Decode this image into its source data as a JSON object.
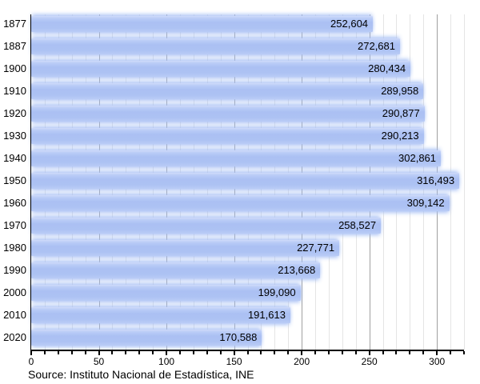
{
  "chart_data": {
    "type": "bar",
    "orientation": "horizontal",
    "title": "",
    "xlabel": "",
    "ylabel": "",
    "categories": [
      "1877",
      "1887",
      "1900",
      "1910",
      "1920",
      "1930",
      "1940",
      "1950",
      "1960",
      "1970",
      "1980",
      "1990",
      "2000",
      "2010",
      "2020"
    ],
    "values": [
      252604,
      272681,
      280434,
      289958,
      290877,
      290213,
      302861,
      316493,
      309142,
      258527,
      227771,
      213668,
      199090,
      191613,
      170588
    ],
    "value_labels": [
      "252,604",
      "272,681",
      "280,434",
      "289,958",
      "290,877",
      "290,213",
      "302,861",
      "316,493",
      "309,142",
      "258,527",
      "227,771",
      "213,668",
      "199,090",
      "191,613",
      "170,588"
    ],
    "x_axis_unit_divisor": 1000,
    "xlim": [
      0,
      320
    ],
    "x_tick_minor_step": 10,
    "x_tick_major_step": 50,
    "x_tick_labels": [
      "0",
      "50",
      "100",
      "150",
      "200",
      "250",
      "300"
    ],
    "grid": true,
    "legend": "none",
    "source": "Source: Instituto Nacional de Estadística, INE",
    "colors": {
      "bar": "#adc2f3",
      "grid_minor": "#e4e4e4",
      "grid_major": "#a0a0a0",
      "axis": "#000000",
      "text": "#000000",
      "background": "#ffffff"
    }
  }
}
